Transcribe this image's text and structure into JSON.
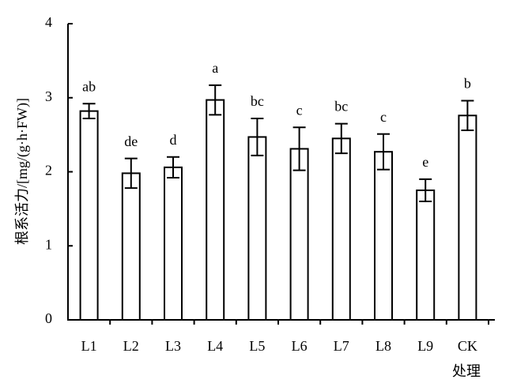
{
  "chart_data": {
    "type": "bar",
    "y_label": "根系活力/[mg/(g·h·FW)]",
    "x_label": "处理",
    "categories": [
      "L1",
      "L2",
      "L3",
      "L4",
      "L5",
      "L6",
      "L7",
      "L8",
      "L9",
      "CK"
    ],
    "values": [
      2.82,
      1.98,
      2.06,
      2.97,
      2.47,
      2.31,
      2.45,
      2.27,
      1.75,
      2.76
    ],
    "errors": [
      0.1,
      0.2,
      0.14,
      0.2,
      0.25,
      0.29,
      0.2,
      0.24,
      0.15,
      0.2
    ],
    "annotations": [
      "ab",
      "de",
      "d",
      "a",
      "bc",
      "c",
      "bc",
      "c",
      "e",
      "b"
    ],
    "color": "#ffffff",
    "ylim": [
      0,
      4
    ],
    "yticks": [
      0,
      1,
      2,
      3,
      4
    ],
    "grid": false
  }
}
